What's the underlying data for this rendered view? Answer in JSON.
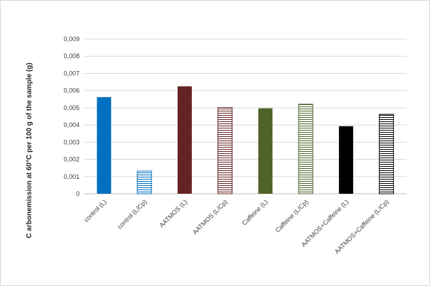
{
  "chart_data": {
    "type": "bar",
    "title": "",
    "xlabel": "",
    "ylabel": "C arbonemission  at 60°C  per 100  g of the sample (g)",
    "ylim": [
      0,
      0.009
    ],
    "ytick_values": [
      0,
      0.001,
      0.002,
      0.003,
      0.004,
      0.005,
      0.006,
      0.007,
      0.008,
      0.009
    ],
    "ytick_labels": [
      "0",
      "0,001",
      "0,002",
      "0,003",
      "0,004",
      "0,005",
      "0,006",
      "0,007",
      "0,008",
      "0,009"
    ],
    "grid": true,
    "legend": "none",
    "categories": [
      "control (L)",
      "control (L/Cp)",
      "AATMOS (L)",
      "AATMOS (L/Cp)",
      "Caffeine (L)",
      "Caffeine (L/Cp)",
      "AATMOS+Caffeine (L)",
      "AATMOS+Caffeine (L/Cp)"
    ],
    "values": [
      0.00562,
      0.00132,
      0.00625,
      0.00502,
      0.00497,
      0.00521,
      0.00393,
      0.00462
    ],
    "colors": [
      "#0070c0",
      "#0070c0",
      "#632423",
      "#632423",
      "#4f6228",
      "#4f6228",
      "#000000",
      "#000000"
    ],
    "fill_style": [
      "solid",
      "striped",
      "solid",
      "striped",
      "solid",
      "striped",
      "solid",
      "striped"
    ]
  }
}
